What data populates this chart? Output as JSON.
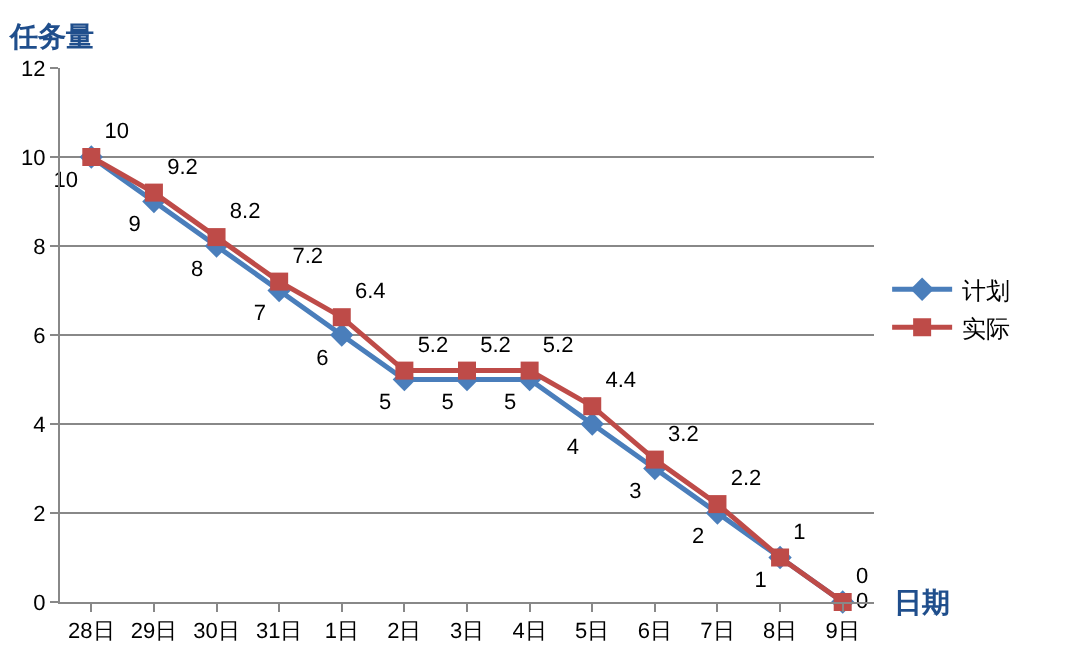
{
  "chart_data": {
    "type": "line",
    "xlabel": "日期",
    "ylabel": "任务量",
    "categories": [
      "28日",
      "29日",
      "30日",
      "31日",
      "1日",
      "2日",
      "3日",
      "4日",
      "5日",
      "6日",
      "7日",
      "8日",
      "9日"
    ],
    "series": [
      {
        "name": "计划",
        "color": "#4a7ebb",
        "marker": "diamond",
        "values": [
          10,
          9,
          8,
          7,
          6,
          5,
          5,
          5,
          4,
          3,
          2,
          1,
          0
        ]
      },
      {
        "name": "实际",
        "color": "#be4b48",
        "marker": "square",
        "values": [
          10,
          9.2,
          8.2,
          7.2,
          6.4,
          5.2,
          5.2,
          5.2,
          4.4,
          3.2,
          2.2,
          1,
          0
        ]
      }
    ],
    "ylim": [
      0,
      12
    ],
    "yticks": [
      0,
      2,
      4,
      6,
      8,
      10,
      12
    ],
    "grid": "y",
    "legend": "right",
    "data_labels": true
  }
}
